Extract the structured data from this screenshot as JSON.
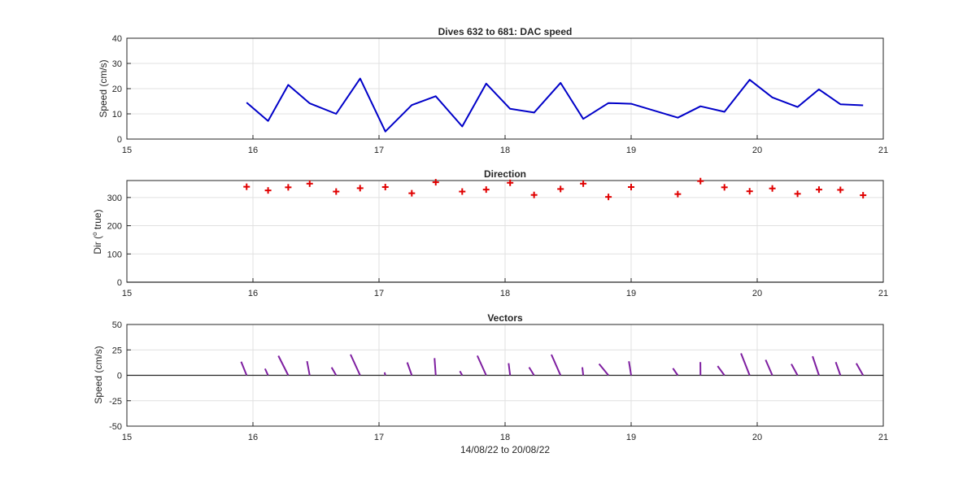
{
  "figure": {
    "xlabel": "14/08/22 to 20/08/22"
  },
  "colors": {
    "speed_line": "#0000c8",
    "dir_marker": "#e00000",
    "vector": "#7e1ea0",
    "grid": "#e0e0e0",
    "axis": "#262626"
  },
  "chart_data": [
    {
      "type": "line",
      "title": "Dives 632 to 681: DAC speed",
      "xlabel": "",
      "ylabel": "Speed (cm/s)",
      "xlim": [
        15,
        21
      ],
      "ylim": [
        0,
        40
      ],
      "xticks": [
        15,
        16,
        17,
        18,
        19,
        20,
        21
      ],
      "yticks": [
        0,
        10,
        20,
        30,
        40
      ],
      "grid": true,
      "series": [
        {
          "x": [
            15.95,
            16.12,
            16.28,
            16.45,
            16.66,
            16.85,
            17.05,
            17.26,
            17.45,
            17.66,
            17.85,
            18.04,
            18.23,
            18.44,
            18.62,
            18.82,
            19.0,
            19.37,
            19.55,
            19.74,
            19.94,
            20.12,
            20.32,
            20.49,
            20.66,
            20.84
          ],
          "y": [
            14.5,
            7.2,
            21.5,
            14.2,
            10.0,
            24.0,
            3.0,
            13.5,
            17.0,
            5.0,
            22.0,
            12.0,
            10.5,
            22.3,
            8.0,
            14.3,
            14.0,
            8.5,
            13.0,
            10.8,
            23.5,
            16.5,
            12.7,
            19.7,
            13.8,
            13.4
          ]
        }
      ]
    },
    {
      "type": "scatter",
      "title": "Direction",
      "xlabel": "",
      "ylabel": "Dir (",
      "ylabel_sup": "o",
      "ylabel_tail": " true)",
      "xlim": [
        15,
        21
      ],
      "ylim": [
        0,
        360
      ],
      "xticks": [
        15,
        16,
        17,
        18,
        19,
        20,
        21
      ],
      "yticks": [
        0,
        100,
        200,
        300
      ],
      "grid": true,
      "series": [
        {
          "x": [
            15.95,
            16.12,
            16.28,
            16.45,
            16.66,
            16.85,
            17.05,
            17.26,
            17.45,
            17.66,
            17.85,
            18.04,
            18.23,
            18.44,
            18.62,
            18.82,
            19.0,
            19.37,
            19.55,
            19.74,
            19.94,
            20.12,
            20.32,
            20.49,
            20.66,
            20.84
          ],
          "y": [
            338,
            325,
            336,
            349,
            321,
            333,
            337,
            315,
            354,
            321,
            328,
            352,
            309,
            330,
            349,
            302,
            337,
            312,
            358,
            336,
            322,
            332,
            313,
            328,
            327,
            308
          ]
        }
      ]
    },
    {
      "type": "vector",
      "title": "Vectors",
      "xlabel": "14/08/22 to 20/08/22",
      "ylabel": "Speed (cm/s)",
      "xlim": [
        15,
        21
      ],
      "ylim": [
        -50,
        50
      ],
      "xticks": [
        15,
        16,
        17,
        18,
        19,
        20,
        21
      ],
      "yticks": [
        -50,
        -25,
        0,
        25,
        50
      ],
      "grid": true,
      "series": [
        {
          "x": [
            15.95,
            16.12,
            16.28,
            16.45,
            16.66,
            16.85,
            17.05,
            17.26,
            17.45,
            17.66,
            17.85,
            18.04,
            18.23,
            18.44,
            18.62,
            18.82,
            19.0,
            19.37,
            19.55,
            19.74,
            19.94,
            20.12,
            20.32,
            20.49,
            20.66,
            20.84
          ],
          "u": [
            -5.4,
            -3.0,
            -9.7,
            -2.6,
            -4.5,
            -9.4,
            -0.7,
            -4.5,
            -1.2,
            -2.3,
            -8.7,
            -1.5,
            -4.9,
            -9.0,
            -0.9,
            -9.2,
            -2.2,
            -4.8,
            -0.1,
            -6.7,
            -8.5,
            -6.6,
            -6.1,
            -6.3,
            -4.6,
            -6.7
          ],
          "v": [
            13.4,
            6.5,
            19.2,
            13.9,
            7.8,
            20.5,
            2.9,
            12.7,
            16.9,
            4.1,
            19.3,
            11.9,
            7.9,
            20.4,
            7.9,
            11.2,
            13.8,
            6.9,
            13.0,
            9.1,
            21.6,
            15.2,
            11.1,
            18.7,
            13.0,
            11.8
          ]
        }
      ]
    }
  ]
}
